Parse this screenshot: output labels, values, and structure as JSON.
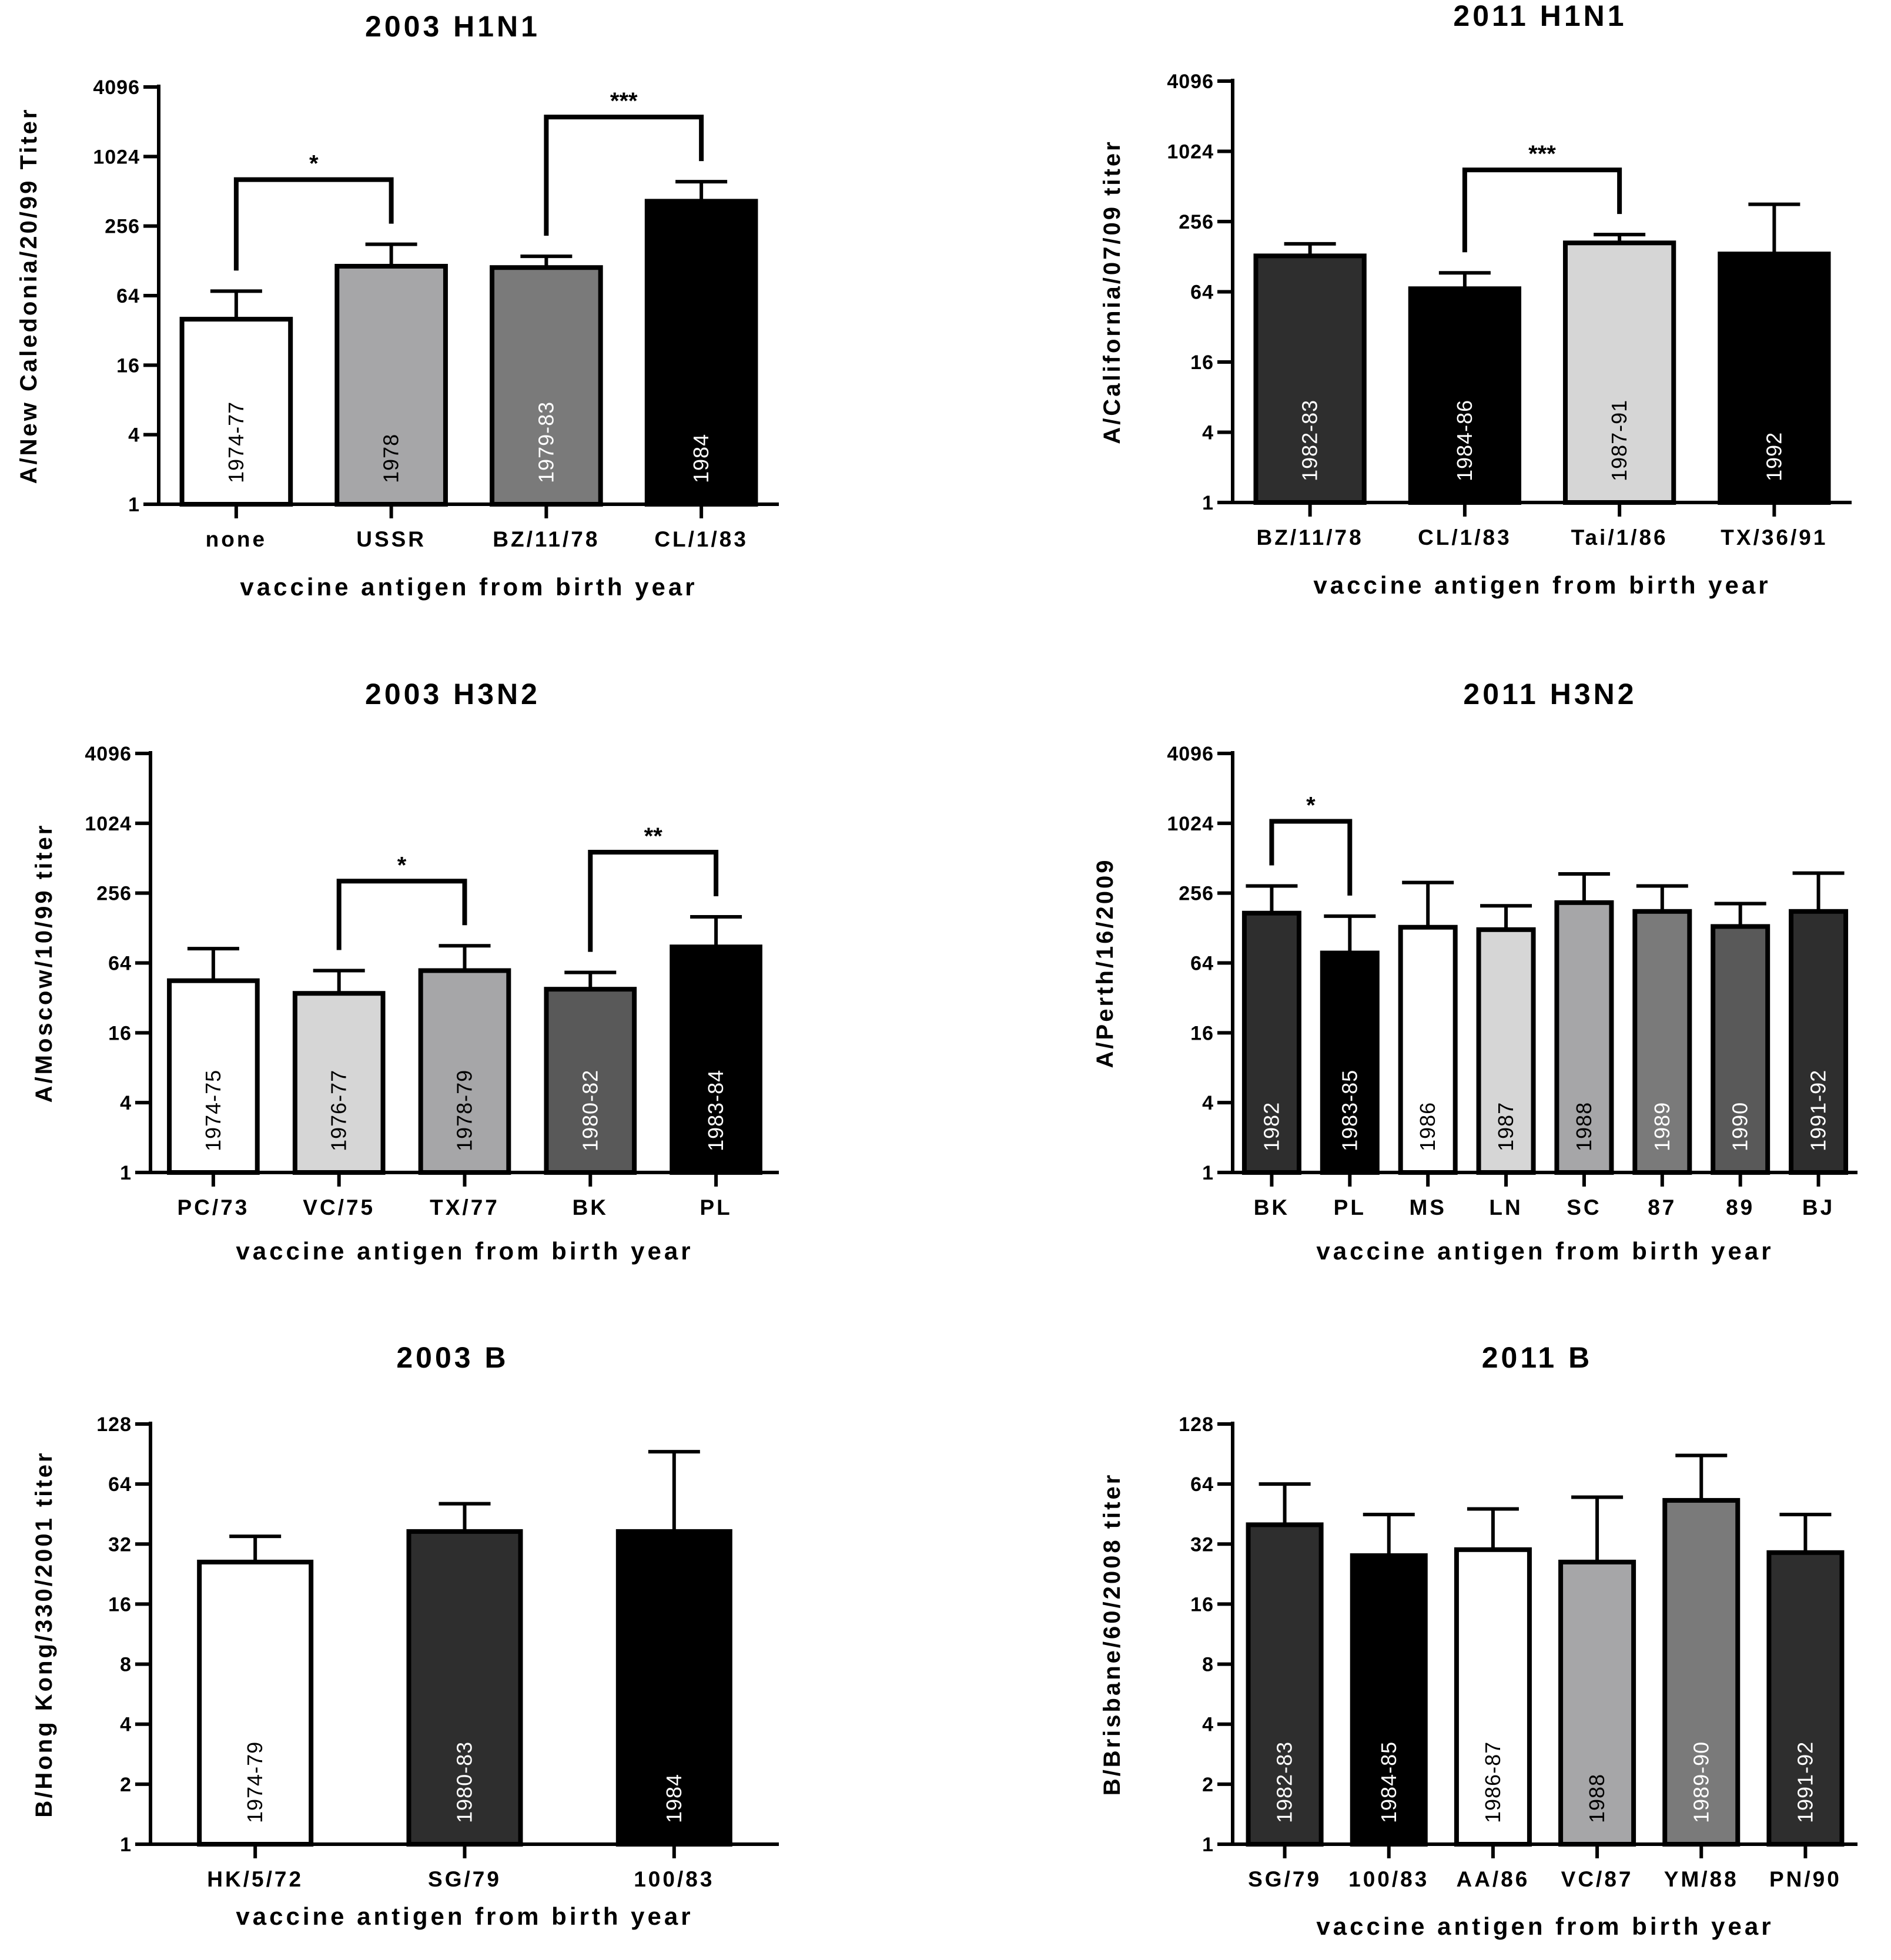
{
  "figure": {
    "panels": [
      {
        "id": "h1n1-2003",
        "title": "2003 H1N1",
        "ylabel": "A/New Caledonia/20/99 Titer",
        "xlabel": "vaccine antigen from birth year",
        "yticks": [
          "1",
          "4",
          "16",
          "64",
          "256",
          "1024",
          "4096"
        ]
      },
      {
        "id": "h1n1-2011",
        "title": "2011 H1N1",
        "ylabel": "A/California/07/09 titer",
        "xlabel": "vaccine antigen from birth year",
        "yticks": [
          "1",
          "4",
          "16",
          "64",
          "256",
          "1024",
          "4096"
        ]
      },
      {
        "id": "h3n2-2003",
        "title": "2003 H3N2",
        "ylabel": "A/Moscow/10/99 titer",
        "xlabel": "vaccine antigen from birth year",
        "yticks": [
          "1",
          "4",
          "16",
          "64",
          "256",
          "1024",
          "4096"
        ]
      },
      {
        "id": "h3n2-2011",
        "title": "2011 H3N2",
        "ylabel": "A/Perth/16/2009",
        "xlabel": "vaccine antigen from birth year",
        "yticks": [
          "1",
          "4",
          "16",
          "64",
          "256",
          "1024",
          "4096"
        ]
      },
      {
        "id": "b-2003",
        "title": "2003 B",
        "ylabel": "B/Hong Kong/330/2001 titer",
        "xlabel": "vaccine antigen from birth year",
        "yticks": [
          "1",
          "2",
          "4",
          "8",
          "16",
          "32",
          "64",
          "128"
        ]
      },
      {
        "id": "b-2011",
        "title": "2011 B",
        "ylabel": "B/Brisbane/60/2008 titer",
        "xlabel": "vaccine antigen from birth year",
        "yticks": [
          "1",
          "2",
          "4",
          "8",
          "16",
          "32",
          "64",
          "128"
        ]
      }
    ]
  },
  "chart_data": [
    {
      "type": "bar",
      "title": "2003 H1N1",
      "xlabel": "vaccine antigen from birth year",
      "ylabel": "A/New Caledonia/20/99 Titer",
      "yscale": "log2",
      "ylim": [
        1,
        4096
      ],
      "categories": [
        "none",
        "USSR",
        "BZ/11/78",
        "CL/1/83"
      ],
      "bar_labels": [
        "1974-77",
        "1978",
        "1979-83",
        "1984"
      ],
      "values": [
        40,
        115,
        112,
        420
      ],
      "error_upper": [
        70,
        178,
        140,
        620
      ],
      "bar_colors": [
        "#ffffff",
        "#a6a6a8",
        "#7a7a7a",
        "#000000"
      ],
      "significance": [
        {
          "from": "none",
          "to": "USSR",
          "label": "*"
        },
        {
          "from": "BZ/11/78",
          "to": "CL/1/83",
          "label": "***"
        }
      ]
    },
    {
      "type": "bar",
      "title": "2011 H1N1",
      "xlabel": "vaccine antigen from birth year",
      "ylabel": "A/California/07/09 titer",
      "yscale": "log2",
      "ylim": [
        1,
        4096
      ],
      "categories": [
        "BZ/11/78",
        "CL/1/83",
        "Tai/1/86",
        "TX/36/91"
      ],
      "bar_labels": [
        "1982-83",
        "1984-86",
        "1987-91",
        "1992"
      ],
      "values": [
        130,
        68,
        168,
        135
      ],
      "error_upper": [
        165,
        93,
        198,
        360
      ],
      "bar_colors": [
        "#2e2e2e",
        "#000000",
        "#d6d6d6",
        "#000000"
      ],
      "significance": [
        {
          "from": "CL/1/83",
          "to": "Tai/1/86",
          "label": "***"
        }
      ]
    },
    {
      "type": "bar",
      "title": "2003 H3N2",
      "xlabel": "vaccine antigen from birth year",
      "ylabel": "A/Moscow/10/99 titer",
      "yscale": "log2",
      "ylim": [
        1,
        4096
      ],
      "categories": [
        "PC/73",
        "VC/75",
        "TX/77",
        "BK",
        "PL"
      ],
      "bar_labels": [
        "1974-75",
        "1976-77",
        "1978-79",
        "1980-82",
        "1983-84"
      ],
      "values": [
        45,
        35,
        55,
        38,
        88
      ],
      "error_upper": [
        85,
        55,
        90,
        53,
        160
      ],
      "bar_colors": [
        "#ffffff",
        "#d6d6d6",
        "#a6a6a8",
        "#595959",
        "#000000"
      ],
      "significance": [
        {
          "from": "VC/75",
          "to": "TX/77",
          "label": "*"
        },
        {
          "from": "BK",
          "to": "PL",
          "label": "**"
        }
      ]
    },
    {
      "type": "bar",
      "title": "2011 H3N2",
      "xlabel": "vaccine antigen from birth year",
      "ylabel": "A/Perth/16/2009",
      "yscale": "log2",
      "ylim": [
        1,
        4096
      ],
      "categories": [
        "BK",
        "PL",
        "MS",
        "LN",
        "SC",
        "87",
        "89",
        "BJ"
      ],
      "bar_labels": [
        "1982",
        "1983-85",
        "1986",
        "1987",
        "1988",
        "1989",
        "1990",
        "1991-92"
      ],
      "values": [
        172,
        78,
        130,
        124,
        212,
        178,
        132,
        178
      ],
      "error_upper": [
        295,
        162,
        316,
        199,
        375,
        295,
        208,
        381
      ],
      "bar_colors": [
        "#2e2e2e",
        "#000000",
        "#ffffff",
        "#d6d6d6",
        "#a6a6a8",
        "#7a7a7a",
        "#595959",
        "#2e2e2e"
      ],
      "significance": [
        {
          "from": "BK",
          "to": "PL",
          "label": "*"
        }
      ]
    },
    {
      "type": "bar",
      "title": "2003 B",
      "xlabel": "vaccine antigen from birth year",
      "ylabel": "B/Hong Kong/330/2001 titer",
      "yscale": "log2",
      "ylim": [
        1,
        128
      ],
      "categories": [
        "HK/5/72",
        "SG/79",
        "100/83"
      ],
      "bar_labels": [
        "1974-79",
        "1980-83",
        "1984"
      ],
      "values": [
        26,
        37,
        37
      ],
      "error_upper": [
        35,
        51,
        93
      ],
      "bar_colors": [
        "#ffffff",
        "#2e2e2e",
        "#000000"
      ],
      "significance": []
    },
    {
      "type": "bar",
      "title": "2011 B",
      "xlabel": "vaccine antigen from birth year",
      "ylabel": "B/Brisbane/60/2008 titer",
      "yscale": "log2",
      "ylim": [
        1,
        128
      ],
      "categories": [
        "SG/79",
        "100/83",
        "AA/86",
        "VC/87",
        "YM/88",
        "PN/90"
      ],
      "bar_labels": [
        "1982-83",
        "1984-85",
        "1986-87",
        "1988",
        "1989-90",
        "1991-92"
      ],
      "values": [
        40,
        28,
        30,
        26,
        53,
        29
      ],
      "error_upper": [
        64,
        45,
        48,
        55,
        89,
        45
      ],
      "bar_colors": [
        "#2e2e2e",
        "#000000",
        "#ffffff",
        "#a6a6a8",
        "#7a7a7a",
        "#2e2e2e"
      ],
      "significance": []
    }
  ]
}
